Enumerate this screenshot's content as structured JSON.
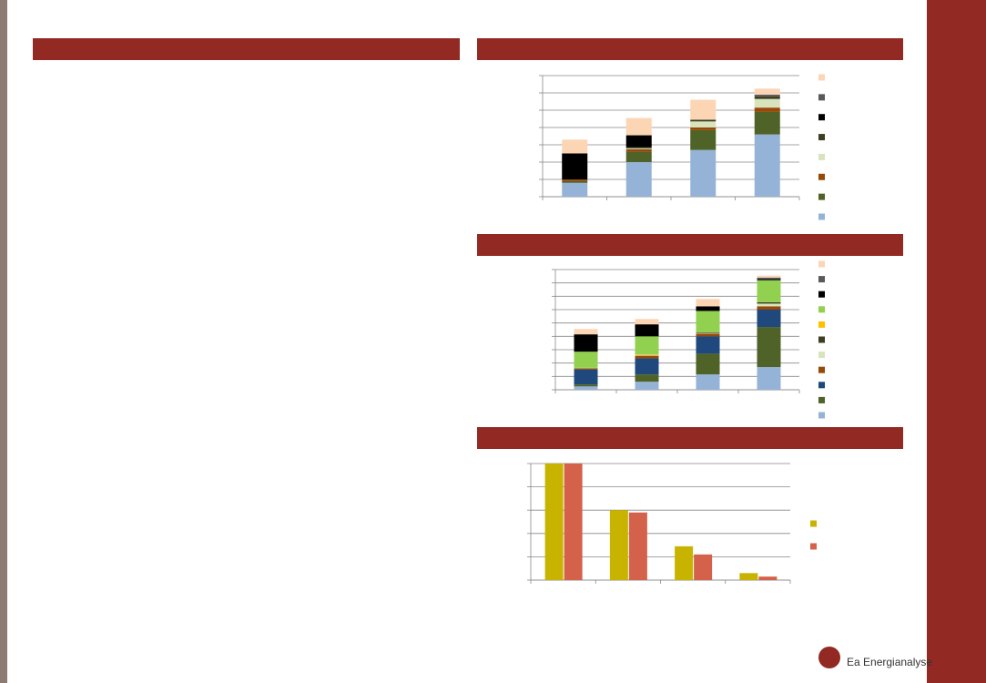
{
  "chart_data": [
    {
      "type": "bar",
      "stacked": true,
      "categories": [
        null,
        null,
        null,
        null
      ],
      "series": [
        {
          "color": "#95b3d7",
          "values": [
            0.8,
            2.0,
            2.7,
            3.6
          ]
        },
        {
          "color": "#4f6228",
          "values": [
            0.1,
            0.6,
            1.15,
            1.3
          ]
        },
        {
          "color": "#984807",
          "values": [
            0.1,
            0.15,
            0.15,
            0.25
          ]
        },
        {
          "color": "#d7e4bd",
          "values": [
            0,
            0.05,
            0.35,
            0.5
          ]
        },
        {
          "color": "#3e3e23",
          "values": [
            0,
            0.05,
            0.1,
            0.15
          ]
        },
        {
          "color": "#000000",
          "values": [
            1.5,
            0.7,
            0,
            0
          ]
        },
        {
          "color": "#595959",
          "values": [
            0,
            0,
            0,
            0.1
          ]
        },
        {
          "color": "#fcd5b5",
          "values": [
            0.8,
            1.0,
            1.15,
            0.35
          ]
        }
      ],
      "ylim": [
        0,
        7
      ],
      "yticks": [
        0,
        1,
        2,
        3,
        4,
        5,
        6,
        7
      ],
      "grid": true
    },
    {
      "type": "bar",
      "stacked": true,
      "categories": [
        null,
        null,
        null,
        null
      ],
      "series": [
        {
          "color": "#95b3d7",
          "values": [
            0.25,
            0.6,
            1.15,
            1.7
          ]
        },
        {
          "color": "#4f6228",
          "values": [
            0.15,
            0.55,
            1.55,
            3.0
          ]
        },
        {
          "color": "#1f497d",
          "values": [
            1.15,
            1.2,
            1.3,
            1.3
          ]
        },
        {
          "color": "#984807",
          "values": [
            0.05,
            0.2,
            0.2,
            0.25
          ]
        },
        {
          "color": "#d7e4bd",
          "values": [
            0,
            0.05,
            0.05,
            0.2
          ]
        },
        {
          "color": "#3e3e23",
          "values": [
            0,
            0,
            0.05,
            0.1
          ]
        },
        {
          "color": "#ffc000",
          "values": [
            0.05,
            0.05,
            0,
            0
          ]
        },
        {
          "color": "#92d050",
          "values": [
            1.2,
            1.35,
            1.6,
            1.65
          ]
        },
        {
          "color": "#000000",
          "values": [
            1.3,
            0.9,
            0.35,
            0.1
          ]
        },
        {
          "color": "#595959",
          "values": [
            0,
            0,
            0,
            0.1
          ]
        },
        {
          "color": "#fcd5b5",
          "values": [
            0.4,
            0.4,
            0.55,
            0.15
          ]
        }
      ],
      "ylim": [
        0,
        9
      ],
      "yticks": [
        0,
        1,
        2,
        3,
        4,
        5,
        6,
        7,
        8,
        9
      ],
      "grid": true
    },
    {
      "type": "bar",
      "stacked": false,
      "categories": [
        null,
        null,
        null,
        null
      ],
      "series": [
        {
          "color": "#c8b400",
          "values": [
            5.0,
            3.0,
            1.45,
            0.3
          ]
        },
        {
          "color": "#d4614a",
          "values": [
            5.0,
            2.9,
            1.1,
            0.15
          ]
        }
      ],
      "ylim": [
        0,
        5
      ],
      "yticks": [
        0,
        1,
        2,
        3,
        4,
        5
      ],
      "grid": true
    }
  ],
  "footer": {
    "logo_text": "Ea Energianalyse"
  }
}
